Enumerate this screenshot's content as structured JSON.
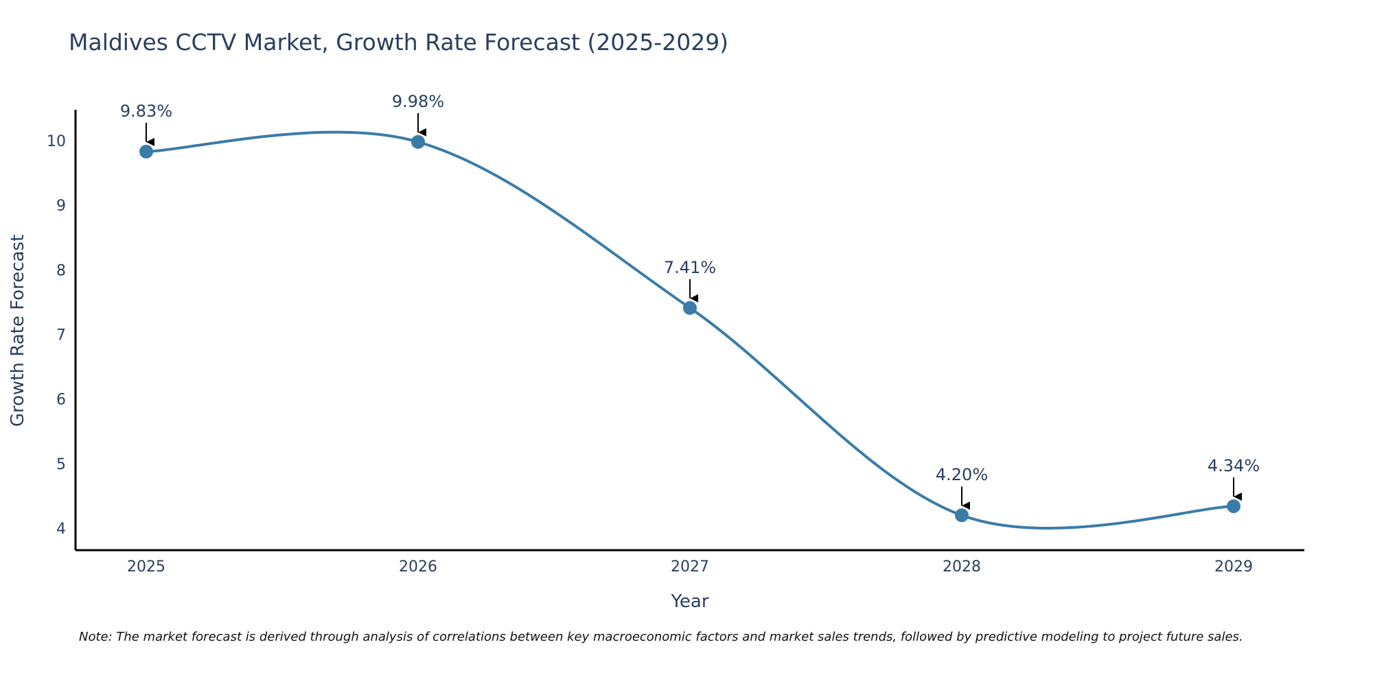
{
  "chart_data": {
    "type": "line",
    "title": "Maldives CCTV Market, Growth Rate Forecast (2025-2029)",
    "xlabel": "Year",
    "ylabel": "Growth Rate Forecast",
    "categories": [
      "2025",
      "2026",
      "2027",
      "2028",
      "2029"
    ],
    "series": [
      {
        "name": "Growth Rate Forecast",
        "values": [
          9.83,
          9.98,
          7.41,
          4.2,
          4.34
        ]
      }
    ],
    "data_labels": [
      "9.83%",
      "9.98%",
      "7.41%",
      "4.20%",
      "4.34%"
    ],
    "yticks": [
      4,
      5,
      6,
      7,
      8,
      9,
      10
    ],
    "ylim": [
      3.7,
      10.5
    ],
    "grid": false,
    "legend": false,
    "line_color": "#3a7ca8",
    "marker_color": "#3a7ca8",
    "arrow_color": "#000000"
  },
  "note": "Note: The market forecast is derived through analysis of correlations between key macroeconomic factors and market sales trends, followed by predictive modeling to project future sales."
}
